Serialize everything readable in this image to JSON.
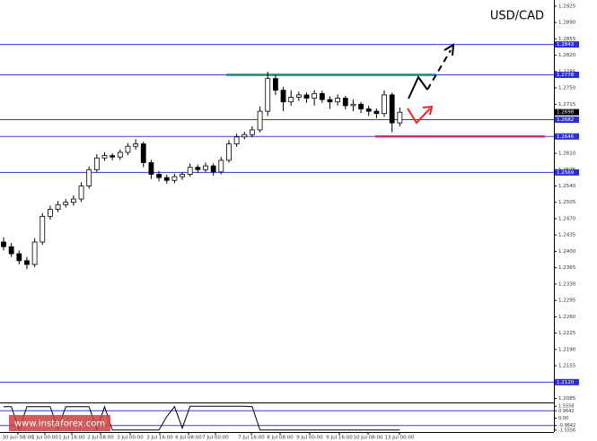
{
  "chart_data": {
    "type": "candlestick",
    "title": "USD/CAD",
    "watermark": "www.instaforex.com",
    "open": [
      1.242,
      1.241,
      1.2395,
      1.238,
      1.2372,
      1.242,
      1.2475,
      1.249,
      1.25,
      1.2505,
      1.2512,
      1.254,
      1.2575,
      1.26,
      1.2605,
      1.2602,
      1.2612,
      1.2625,
      1.263,
      1.259,
      1.2565,
      1.2558,
      1.2552,
      1.256,
      1.2565,
      1.258,
      1.2575,
      1.2583,
      1.257,
      1.2595,
      1.263,
      1.2645,
      1.265,
      1.266,
      1.27,
      1.277,
      1.2745,
      1.272,
      1.273,
      1.2735,
      1.2728,
      1.2738,
      1.2725,
      1.272,
      1.2728,
      1.2712,
      1.2715,
      1.2705,
      1.27,
      1.2695,
      1.2735,
      1.2675
    ],
    "high": [
      1.243,
      1.2418,
      1.2402,
      1.2388,
      1.2428,
      1.2482,
      1.2498,
      1.2508,
      1.2512,
      1.252,
      1.2548,
      1.2582,
      1.2608,
      1.2612,
      1.261,
      1.2618,
      1.2632,
      1.264,
      1.2635,
      1.2596,
      1.2572,
      1.2564,
      1.2566,
      1.257,
      1.2588,
      1.2586,
      1.259,
      1.2588,
      1.2602,
      1.2638,
      1.2652,
      1.2656,
      1.2668,
      1.271,
      1.2785,
      1.2778,
      1.2752,
      1.2745,
      1.2742,
      1.274,
      1.2745,
      1.2744,
      1.2732,
      1.2736,
      1.2733,
      1.2725,
      1.272,
      1.2712,
      1.2706,
      1.2745,
      1.274,
      1.2708
    ],
    "low": [
      1.2402,
      1.2388,
      1.2372,
      1.2362,
      1.2366,
      1.2414,
      1.2468,
      1.2484,
      1.2494,
      1.2498,
      1.2506,
      1.2534,
      1.257,
      1.2594,
      1.2595,
      1.2596,
      1.2606,
      1.2618,
      1.258,
      1.2555,
      1.255,
      1.2545,
      1.2546,
      1.2553,
      1.256,
      1.2568,
      1.257,
      1.2562,
      1.2565,
      1.259,
      1.2624,
      1.264,
      1.2644,
      1.2655,
      1.269,
      1.2735,
      1.27,
      1.2712,
      1.2722,
      1.2718,
      1.2712,
      1.2718,
      1.2705,
      1.2712,
      1.2704,
      1.27,
      1.2696,
      1.269,
      1.2685,
      1.2688,
      1.2655,
      1.2668
    ],
    "close": [
      1.241,
      1.2395,
      1.238,
      1.2372,
      1.242,
      1.2475,
      1.249,
      1.25,
      1.2505,
      1.2512,
      1.254,
      1.2575,
      1.26,
      1.2605,
      1.2602,
      1.2612,
      1.2625,
      1.263,
      1.259,
      1.2565,
      1.2558,
      1.2552,
      1.256,
      1.2565,
      1.258,
      1.2575,
      1.2583,
      1.257,
      1.2595,
      1.263,
      1.2645,
      1.265,
      1.266,
      1.27,
      1.277,
      1.2745,
      1.272,
      1.273,
      1.2735,
      1.2728,
      1.2738,
      1.2725,
      1.272,
      1.2728,
      1.2712,
      1.2715,
      1.2705,
      1.27,
      1.2695,
      1.2735,
      1.2675,
      1.2698
    ],
    "ylim": [
      1.20765,
      1.29382
    ],
    "yticks": [
      1.2925,
      {
        "value": 1.289,
        "label": "1.2890"
      },
      1.2855,
      {
        "value": 1.282,
        "label": "1.2820"
      },
      1.2785,
      {
        "value": 1.275,
        "label": "1.2750"
      },
      1.2715,
      {
        "value": 1.268,
        "label": "1.2680"
      },
      1.2645,
      {
        "value": 1.261,
        "label": "1.2610"
      },
      1.2575,
      {
        "value": 1.254,
        "label": "1.2540"
      },
      1.2505,
      {
        "value": 1.247,
        "label": "1.2470"
      },
      1.2435,
      {
        "value": 1.24,
        "label": "1.2400"
      },
      1.2365,
      {
        "value": 1.233,
        "label": "1.2330"
      },
      1.2295,
      {
        "value": 1.226,
        "label": "1.2260"
      },
      1.2225,
      {
        "value": 1.219,
        "label": "1.2190"
      },
      1.2155,
      {
        "value": 1.212,
        "label": "1.2120"
      },
      1.2085
    ],
    "levels": [
      1.2843,
      1.2778,
      1.2682,
      1.2646,
      1.2569,
      {
        "value": 1.212,
        "label": "1.2120"
      }
    ],
    "current_price": 1.2698,
    "resistance_line": 1.2778,
    "support_line": 1.2646,
    "x_labels": [
      "30 Jun 08:00",
      "1 Jul 00:00",
      "1 Jul 16:00",
      "2 Jul 08:00",
      "3 Jul 00:00",
      "3 Jul 16:00",
      "6 Jul 08:00",
      "7 Jul 00:00",
      "7 Jul 16:00",
      "8 Jul 08:00",
      "9 Jul 00:00",
      "9 Jul 16:00",
      "10 Jul 08:00",
      "13 Jul 00:00"
    ],
    "indicator": {
      "values": [
        1.5,
        1.5,
        -1.5,
        1.5,
        1.5,
        1.5,
        1.5,
        -1.4,
        1.5,
        1.5,
        1.5,
        1.5,
        -1.5,
        1.5,
        -1.55,
        -1.55,
        -1.55,
        -1.55,
        -1.55,
        -1.55,
        -1.55,
        0.2,
        1.5,
        -1.3,
        1.55,
        1.55,
        1.55,
        1.55,
        1.55,
        1.55,
        1.55,
        1.55,
        1.5,
        -1.55,
        -1.55,
        -1.55,
        -1.55,
        -1.55,
        -1.55,
        -1.55,
        -1.55,
        -1.55,
        -1.55,
        -1.55,
        -1.55,
        -1.55,
        -1.55,
        -1.55,
        -1.55,
        -1.55,
        -1.55,
        -1.55
      ],
      "ylim": [
        -1.7,
        1.7
      ],
      "yticks": [
        1.5556,
        0.9642,
        {
          "value": 0,
          "label": "0.00"
        },
        -0.9642,
        -1.5556
      ],
      "levels": [
        0.9642,
        -0.9642
      ]
    }
  }
}
